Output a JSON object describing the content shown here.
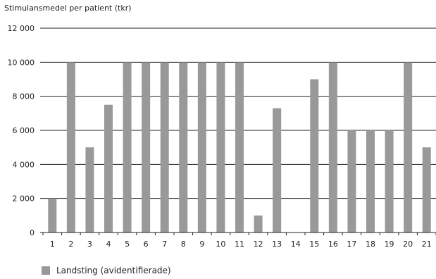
{
  "chart_data": {
    "type": "bar",
    "title": "",
    "ylabel": "Stimulansmedel per patient (tkr)",
    "xlabel": "",
    "ylim": [
      0,
      12000
    ],
    "yticks": [
      0,
      2000,
      4000,
      6000,
      8000,
      10000,
      12000
    ],
    "ytick_labels": [
      "0",
      "2 000",
      "4 000",
      "6 000",
      "8 000",
      "10 000",
      "12 000"
    ],
    "grid": "horizontal",
    "legend_position": "bottom-left",
    "categories": [
      "1",
      "2",
      "3",
      "4",
      "5",
      "6",
      "7",
      "8",
      "9",
      "10",
      "11",
      "12",
      "13",
      "14",
      "15",
      "16",
      "17",
      "18",
      "19",
      "20",
      "21"
    ],
    "series": [
      {
        "name": "Landsting (avidentifierade)",
        "color": "#999999",
        "values": [
          2000,
          10000,
          5000,
          7500,
          10000,
          10000,
          10000,
          10000,
          10000,
          10000,
          10000,
          1000,
          7300,
          0,
          9000,
          10000,
          6000,
          6000,
          6000,
          10000,
          5000
        ]
      }
    ]
  }
}
